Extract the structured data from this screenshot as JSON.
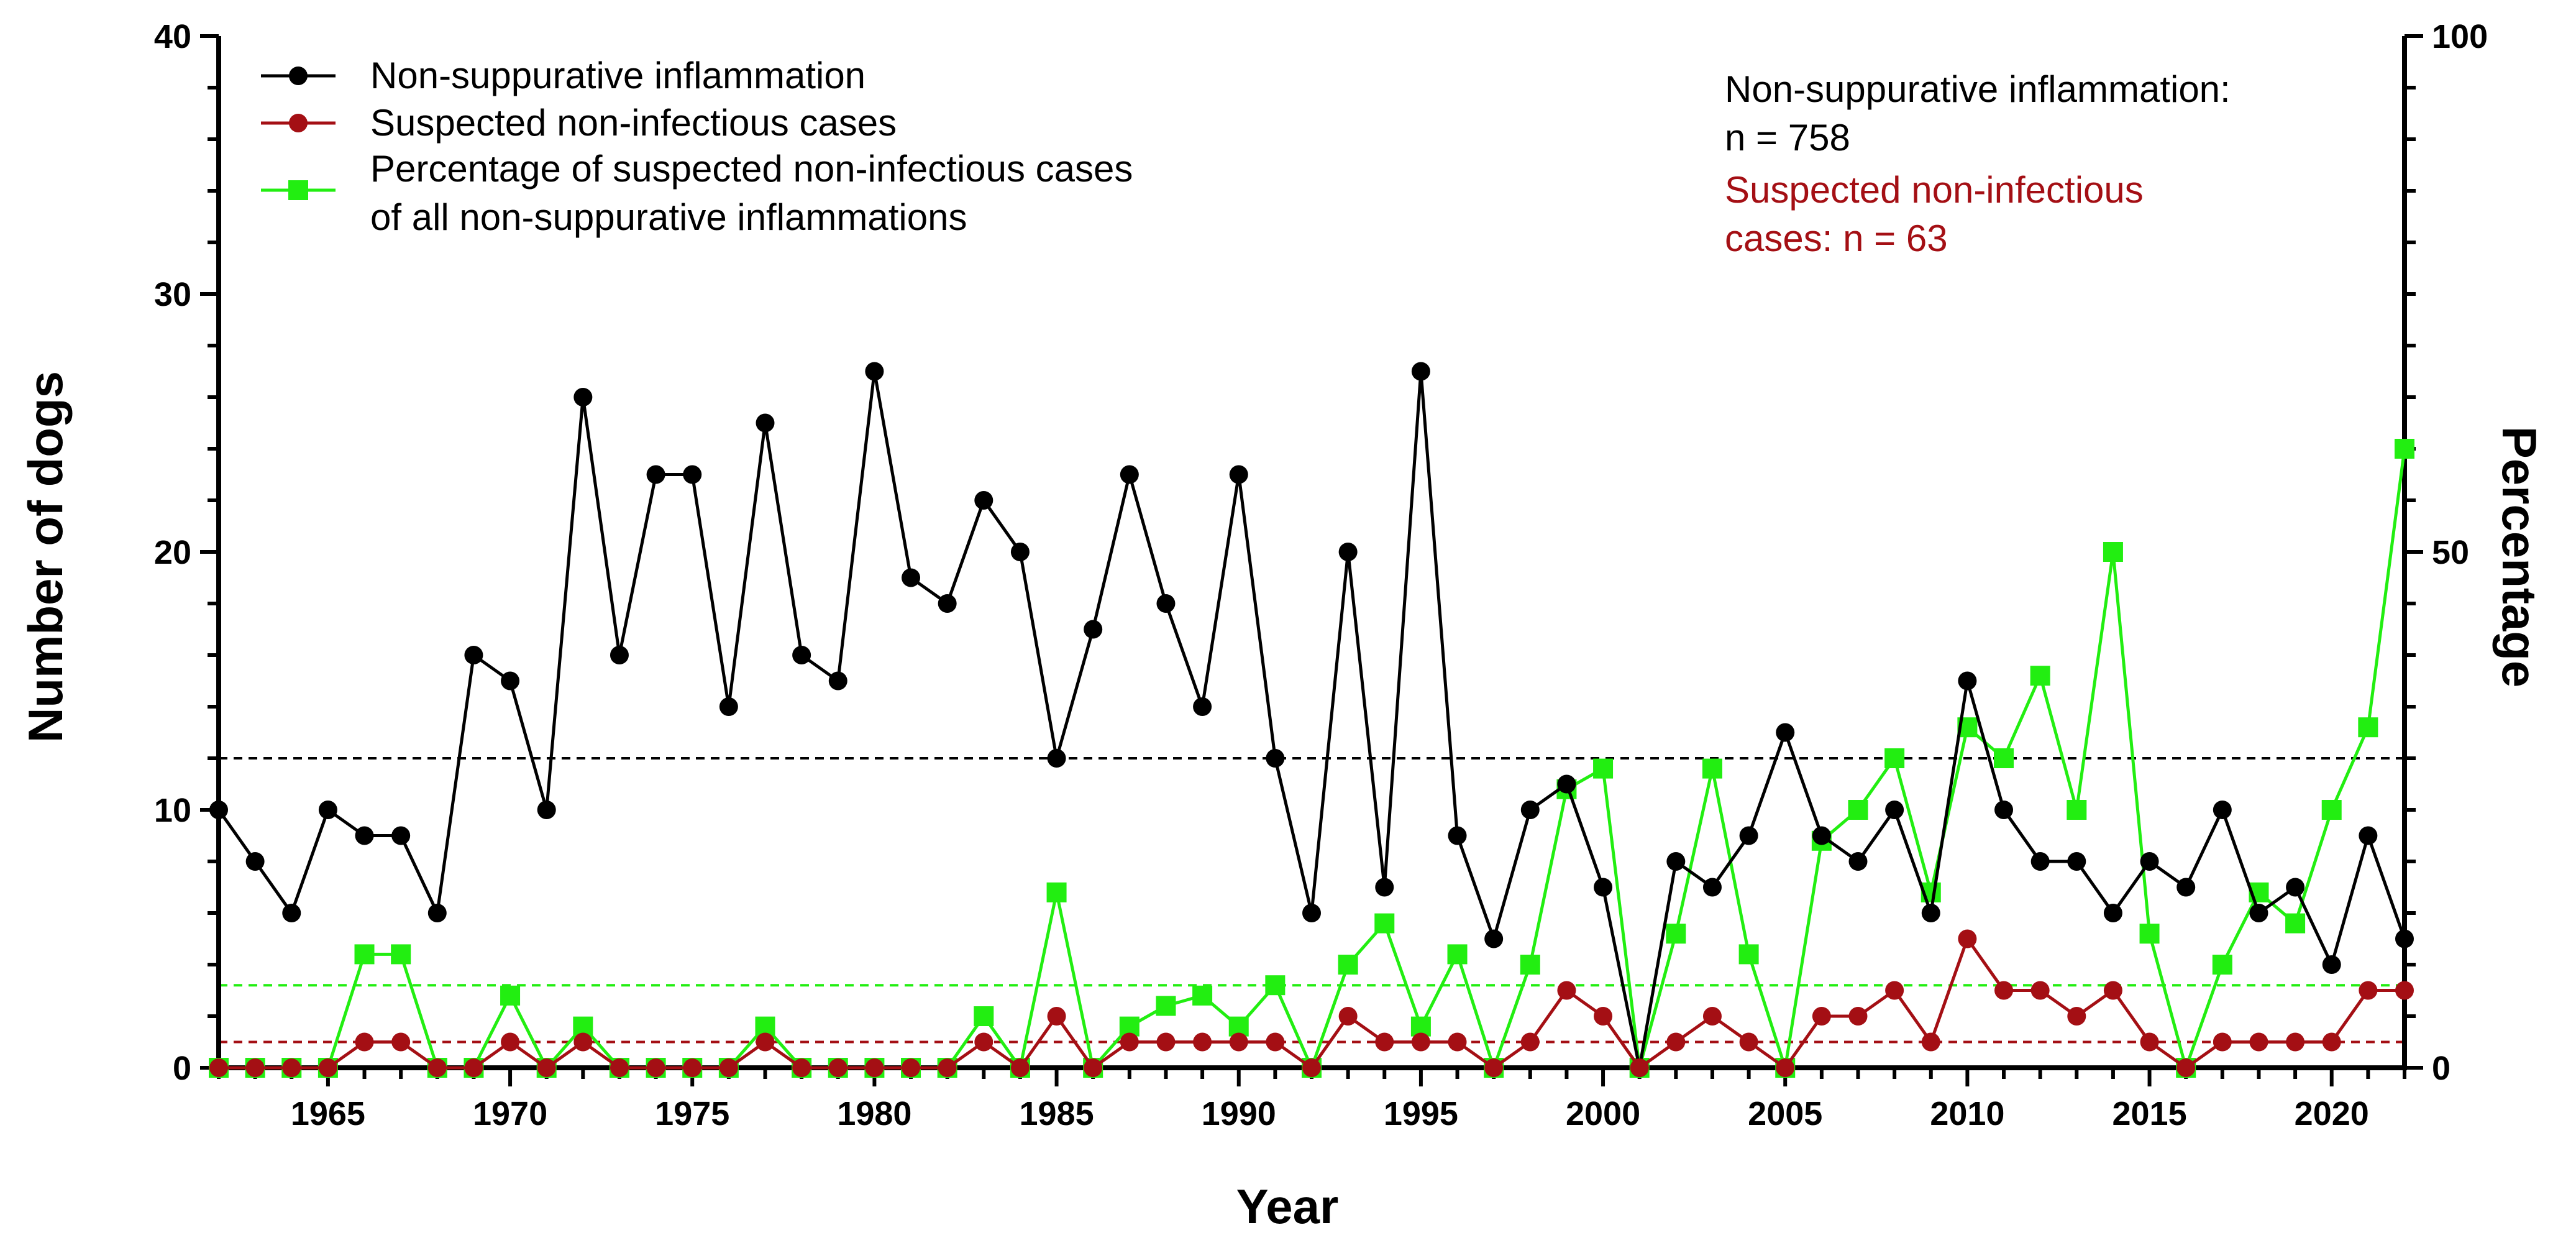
{
  "chart_data": {
    "type": "line",
    "title": "",
    "xlabel": "Year",
    "ylabel": "Number of dogs",
    "y2label": "Percentage",
    "xlim": [
      1962,
      2022
    ],
    "ylim": [
      0,
      40
    ],
    "y2lim": [
      0,
      100
    ],
    "x_ticks": [
      1965,
      1970,
      1975,
      1980,
      1985,
      1990,
      1995,
      2000,
      2005,
      2010,
      2015,
      2020
    ],
    "y_ticks": [
      0,
      10,
      20,
      30,
      40
    ],
    "y2_ticks": [
      0,
      50,
      100
    ],
    "legend_position": "top-left",
    "x": [
      1962,
      1963,
      1964,
      1965,
      1966,
      1967,
      1968,
      1969,
      1970,
      1971,
      1972,
      1973,
      1974,
      1975,
      1976,
      1977,
      1978,
      1979,
      1980,
      1981,
      1982,
      1983,
      1984,
      1985,
      1986,
      1987,
      1988,
      1989,
      1990,
      1991,
      1992,
      1993,
      1994,
      1995,
      1996,
      1997,
      1998,
      1999,
      2000,
      2001,
      2002,
      2003,
      2004,
      2005,
      2006,
      2007,
      2008,
      2009,
      2010,
      2011,
      2012,
      2013,
      2014,
      2015,
      2016,
      2017,
      2018,
      2019,
      2020,
      2021,
      2022
    ],
    "series": [
      {
        "name": "Non-suppurative inflammation",
        "axis": "left",
        "color": "#000000",
        "marker": "circle",
        "values": [
          10,
          8,
          6,
          10,
          9,
          9,
          6,
          16,
          15,
          10,
          26,
          16,
          23,
          23,
          14,
          25,
          16,
          15,
          27,
          19,
          18,
          22,
          20,
          12,
          17,
          23,
          18,
          14,
          23,
          12,
          6,
          20,
          7,
          27,
          9,
          5,
          10,
          11,
          7,
          0,
          8,
          7,
          9,
          13,
          9,
          8,
          10,
          6,
          15,
          10,
          8,
          8,
          6,
          8,
          7,
          10,
          6,
          7,
          4,
          9,
          5
        ]
      },
      {
        "name": "Suspected non-infectious cases",
        "axis": "left",
        "color": "#a40f14",
        "marker": "circle",
        "values": [
          0,
          0,
          0,
          0,
          1,
          1,
          0,
          0,
          1,
          0,
          1,
          0,
          0,
          0,
          0,
          1,
          0,
          0,
          0,
          0,
          0,
          1,
          0,
          2,
          0,
          1,
          1,
          1,
          1,
          1,
          0,
          2,
          1,
          1,
          1,
          0,
          1,
          3,
          2,
          0,
          1,
          2,
          1,
          0,
          2,
          2,
          3,
          1,
          5,
          3,
          3,
          2,
          3,
          1,
          0,
          1,
          1,
          1,
          1,
          3,
          3
        ]
      },
      {
        "name": "Percentage of suspected non-infectious cases of all non-suppurative inflammations",
        "legend_lines": [
          "Percentage of suspected non-infectious cases",
          "of all non-suppurative inflammations"
        ],
        "axis": "right",
        "color": "#22ee11",
        "marker": "square",
        "values": [
          0,
          0,
          0,
          0,
          11,
          11,
          0,
          0,
          7,
          0,
          4,
          0,
          0,
          0,
          0,
          4,
          0,
          0,
          0,
          0,
          0,
          5,
          0,
          17,
          0,
          4,
          6,
          7,
          4,
          8,
          0,
          10,
          14,
          4,
          11,
          0,
          10,
          27,
          29,
          0,
          13,
          29,
          11,
          0,
          22,
          25,
          30,
          17,
          33,
          30,
          38,
          25,
          50,
          13,
          0,
          10,
          17,
          14,
          25,
          33,
          60
        ]
      }
    ],
    "reference_lines": [
      {
        "name": "Mean non-suppurative inflammation",
        "axis": "left",
        "value": 12,
        "color": "#000000"
      },
      {
        "name": "Mean suspected non-infectious cases",
        "axis": "left",
        "value": 1,
        "color": "#a40f14"
      },
      {
        "name": "Mean percentage",
        "axis": "right",
        "value": 8,
        "color": "#22ee11"
      }
    ],
    "annotations": [
      {
        "text": "Non-suppurative inflammation:",
        "color": "#000000"
      },
      {
        "text": "n = 758",
        "color": "#000000"
      },
      {
        "text": "Suspected non-infectious",
        "color": "#a40f14"
      },
      {
        "text": "cases: n = 63",
        "color": "#a40f14"
      }
    ]
  }
}
